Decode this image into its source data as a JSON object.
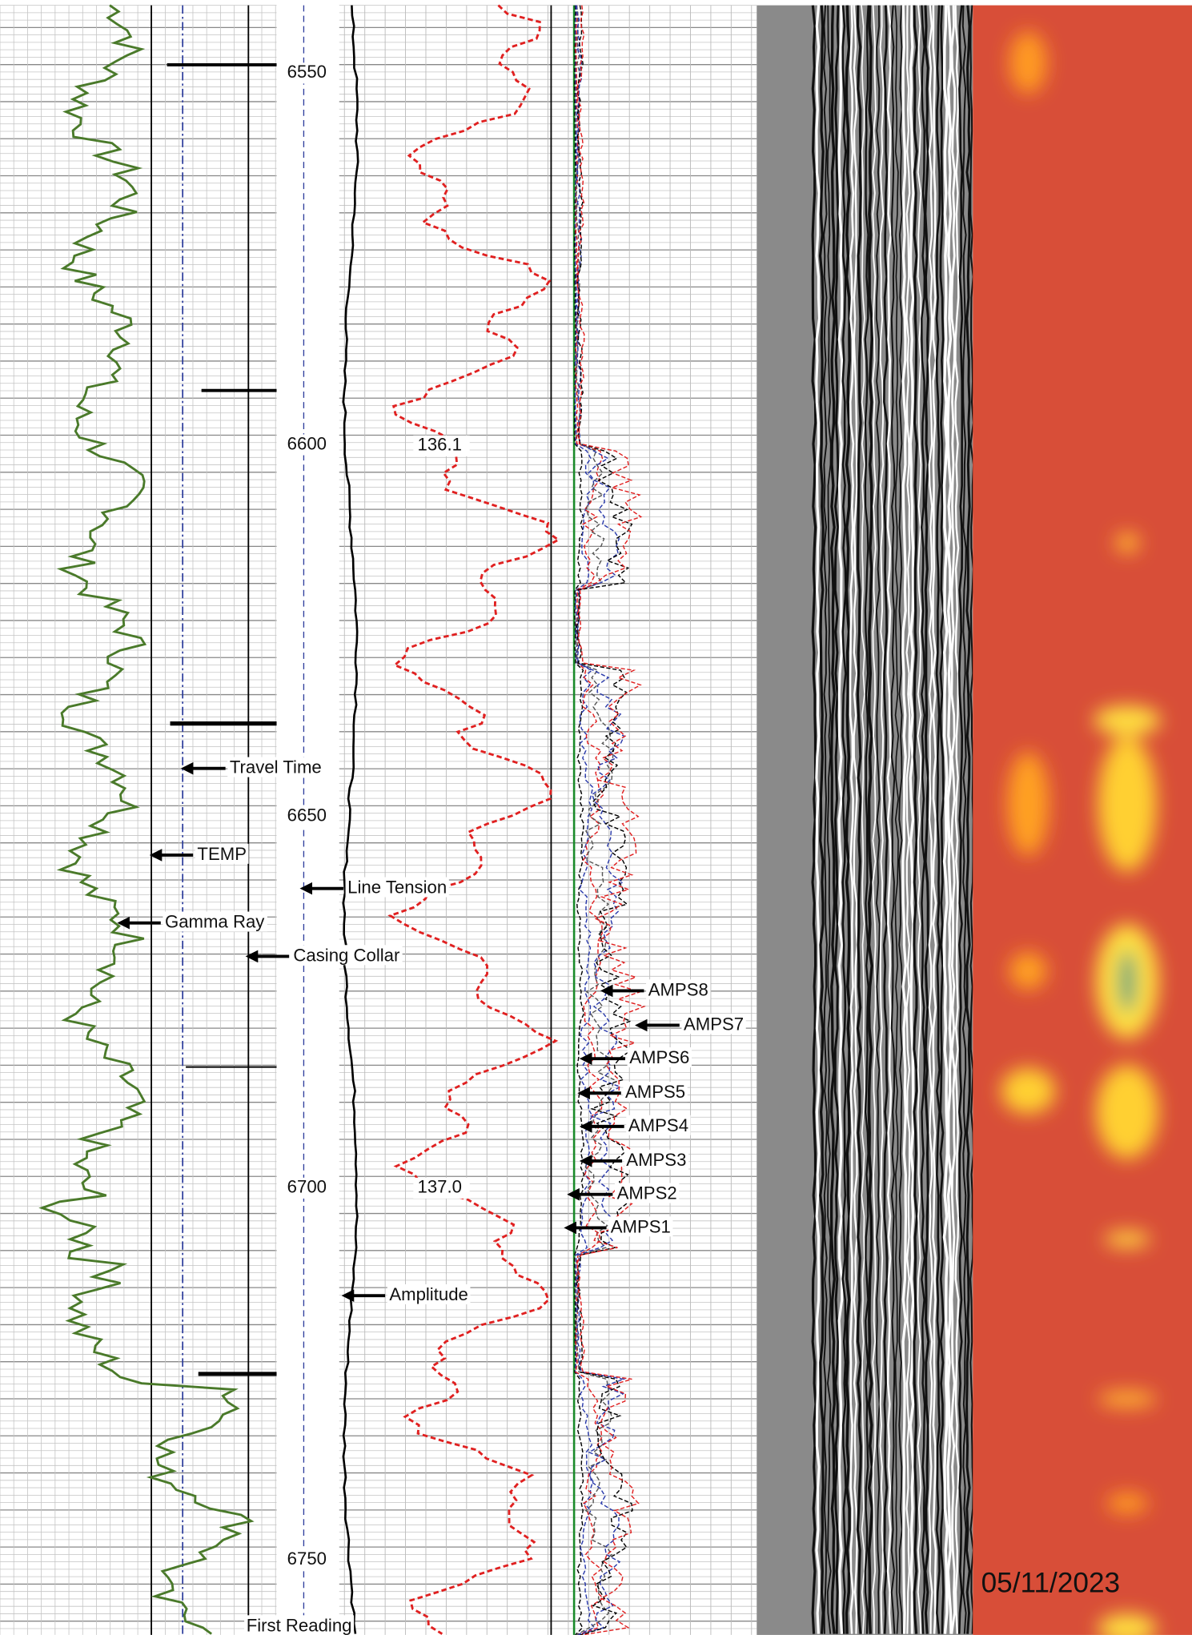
{
  "depth_labels": [
    6550,
    6600,
    6650,
    6700,
    6750
  ],
  "curve_values": [
    "136.1",
    "137.0"
  ],
  "annotations": [
    {
      "label": "Travel Time"
    },
    {
      "label": "TEMP"
    },
    {
      "label": "Line Tension"
    },
    {
      "label": "Gamma Ray"
    },
    {
      "label": "Casing Collar"
    },
    {
      "label": "AMPS8"
    },
    {
      "label": "AMPS7"
    },
    {
      "label": "AMPS6"
    },
    {
      "label": "AMPS5"
    },
    {
      "label": "AMPS4"
    },
    {
      "label": "AMPS3"
    },
    {
      "label": "AMPS2"
    },
    {
      "label": "AMPS1"
    },
    {
      "label": "Amplitude"
    },
    {
      "label": "First Reading"
    }
  ],
  "date": "05/11/2023"
}
